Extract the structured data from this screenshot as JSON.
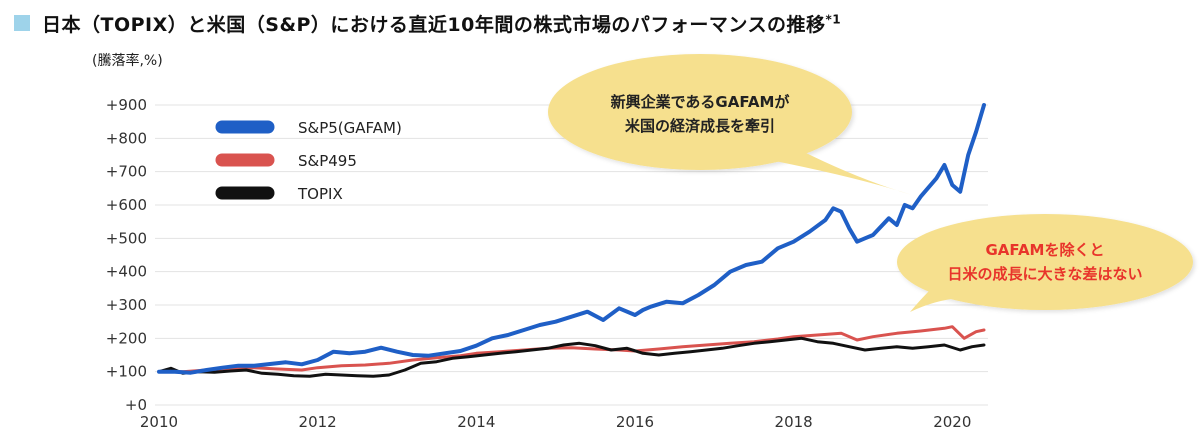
{
  "header": {
    "title": "日本（TOPIX）と米国（S&P）における直近10年間の株式市場のパフォーマンスの推移",
    "title_note": "*1",
    "accent_color": "#9ed3ea"
  },
  "chart_data": {
    "type": "line",
    "title": "日本（TOPIX）と米国（S&P）における直近10年間の株式市場のパフォーマンスの推移*1",
    "ylabel": "(騰落率,%)",
    "xlabel": "",
    "xlim": [
      2009.95,
      2020.45
    ],
    "ylim": [
      0,
      900
    ],
    "x_ticks": [
      2010,
      2012,
      2014,
      2016,
      2018,
      2020
    ],
    "x_tick_labels": [
      "2010",
      "2012",
      "2014",
      "2016",
      "2018",
      "2020"
    ],
    "y_ticks": [
      0,
      100,
      200,
      300,
      400,
      500,
      600,
      700,
      800,
      900
    ],
    "y_tick_labels": [
      "+0",
      "+100",
      "+200",
      "+300",
      "+400",
      "+500",
      "+600",
      "+700",
      "+800",
      "+900"
    ],
    "grid": "horizontal",
    "legend_position": "top-left",
    "series": [
      {
        "name": "S&P5(GAFAM)",
        "color": "#1f5fc6",
        "points": [
          [
            2010.0,
            100
          ],
          [
            2010.2,
            100
          ],
          [
            2010.4,
            97
          ],
          [
            2010.6,
            105
          ],
          [
            2010.8,
            112
          ],
          [
            2011.0,
            118
          ],
          [
            2011.2,
            118
          ],
          [
            2011.4,
            123
          ],
          [
            2011.6,
            128
          ],
          [
            2011.8,
            122
          ],
          [
            2012.0,
            135
          ],
          [
            2012.2,
            160
          ],
          [
            2012.4,
            155
          ],
          [
            2012.6,
            160
          ],
          [
            2012.8,
            172
          ],
          [
            2013.0,
            160
          ],
          [
            2013.2,
            150
          ],
          [
            2013.4,
            148
          ],
          [
            2013.6,
            155
          ],
          [
            2013.8,
            162
          ],
          [
            2014.0,
            178
          ],
          [
            2014.2,
            200
          ],
          [
            2014.4,
            210
          ],
          [
            2014.6,
            225
          ],
          [
            2014.8,
            240
          ],
          [
            2015.0,
            250
          ],
          [
            2015.2,
            265
          ],
          [
            2015.4,
            280
          ],
          [
            2015.6,
            255
          ],
          [
            2015.8,
            290
          ],
          [
            2016.0,
            270
          ],
          [
            2016.1,
            285
          ],
          [
            2016.2,
            295
          ],
          [
            2016.4,
            310
          ],
          [
            2016.6,
            305
          ],
          [
            2016.8,
            330
          ],
          [
            2017.0,
            360
          ],
          [
            2017.2,
            400
          ],
          [
            2017.4,
            420
          ],
          [
            2017.6,
            430
          ],
          [
            2017.8,
            470
          ],
          [
            2018.0,
            490
          ],
          [
            2018.2,
            520
          ],
          [
            2018.4,
            555
          ],
          [
            2018.5,
            590
          ],
          [
            2018.6,
            580
          ],
          [
            2018.7,
            530
          ],
          [
            2018.8,
            490
          ],
          [
            2018.9,
            500
          ],
          [
            2019.0,
            510
          ],
          [
            2019.2,
            560
          ],
          [
            2019.3,
            540
          ],
          [
            2019.4,
            600
          ],
          [
            2019.5,
            590
          ],
          [
            2019.6,
            625
          ],
          [
            2019.8,
            680
          ],
          [
            2019.9,
            720
          ],
          [
            2020.0,
            660
          ],
          [
            2020.1,
            640
          ],
          [
            2020.2,
            750
          ],
          [
            2020.3,
            820
          ],
          [
            2020.4,
            900
          ]
        ],
        "data_labels": []
      },
      {
        "name": "S&P495",
        "color": "#d9534f",
        "points": [
          [
            2010.0,
            100
          ],
          [
            2010.3,
            100
          ],
          [
            2010.6,
            105
          ],
          [
            2010.9,
            110
          ],
          [
            2011.2,
            112
          ],
          [
            2011.5,
            108
          ],
          [
            2011.8,
            105
          ],
          [
            2012.0,
            112
          ],
          [
            2012.3,
            118
          ],
          [
            2012.6,
            120
          ],
          [
            2012.9,
            125
          ],
          [
            2013.2,
            135
          ],
          [
            2013.5,
            142
          ],
          [
            2013.8,
            148
          ],
          [
            2014.0,
            155
          ],
          [
            2014.3,
            160
          ],
          [
            2014.6,
            165
          ],
          [
            2014.9,
            170
          ],
          [
            2015.2,
            172
          ],
          [
            2015.5,
            168
          ],
          [
            2015.8,
            165
          ],
          [
            2016.0,
            162
          ],
          [
            2016.3,
            168
          ],
          [
            2016.6,
            175
          ],
          [
            2016.9,
            180
          ],
          [
            2017.2,
            185
          ],
          [
            2017.5,
            190
          ],
          [
            2017.8,
            198
          ],
          [
            2018.0,
            205
          ],
          [
            2018.3,
            210
          ],
          [
            2018.6,
            215
          ],
          [
            2018.8,
            195
          ],
          [
            2019.0,
            205
          ],
          [
            2019.3,
            215
          ],
          [
            2019.6,
            222
          ],
          [
            2019.9,
            230
          ],
          [
            2020.0,
            235
          ],
          [
            2020.15,
            200
          ],
          [
            2020.3,
            220
          ],
          [
            2020.4,
            225
          ]
        ],
        "data_labels": []
      },
      {
        "name": "TOPIX",
        "color": "#111111",
        "points": [
          [
            2010.0,
            100
          ],
          [
            2010.15,
            110
          ],
          [
            2010.3,
            95
          ],
          [
            2010.5,
            100
          ],
          [
            2010.7,
            98
          ],
          [
            2010.9,
            102
          ],
          [
            2011.1,
            105
          ],
          [
            2011.3,
            95
          ],
          [
            2011.5,
            92
          ],
          [
            2011.7,
            88
          ],
          [
            2011.9,
            86
          ],
          [
            2012.1,
            92
          ],
          [
            2012.3,
            90
          ],
          [
            2012.5,
            88
          ],
          [
            2012.7,
            86
          ],
          [
            2012.9,
            90
          ],
          [
            2013.1,
            105
          ],
          [
            2013.3,
            125
          ],
          [
            2013.5,
            130
          ],
          [
            2013.7,
            140
          ],
          [
            2013.9,
            145
          ],
          [
            2014.1,
            150
          ],
          [
            2014.3,
            155
          ],
          [
            2014.5,
            160
          ],
          [
            2014.7,
            165
          ],
          [
            2014.9,
            170
          ],
          [
            2015.1,
            180
          ],
          [
            2015.3,
            185
          ],
          [
            2015.5,
            178
          ],
          [
            2015.7,
            165
          ],
          [
            2015.9,
            170
          ],
          [
            2016.1,
            155
          ],
          [
            2016.3,
            150
          ],
          [
            2016.5,
            155
          ],
          [
            2016.7,
            160
          ],
          [
            2016.9,
            165
          ],
          [
            2017.1,
            170
          ],
          [
            2017.3,
            178
          ],
          [
            2017.5,
            185
          ],
          [
            2017.7,
            190
          ],
          [
            2017.9,
            195
          ],
          [
            2018.1,
            200
          ],
          [
            2018.3,
            190
          ],
          [
            2018.5,
            185
          ],
          [
            2018.7,
            175
          ],
          [
            2018.9,
            165
          ],
          [
            2019.1,
            170
          ],
          [
            2019.3,
            175
          ],
          [
            2019.5,
            170
          ],
          [
            2019.7,
            175
          ],
          [
            2019.9,
            180
          ],
          [
            2020.1,
            165
          ],
          [
            2020.25,
            175
          ],
          [
            2020.4,
            180
          ]
        ],
        "data_labels": []
      }
    ]
  },
  "annotations": [
    {
      "text_line1": "新興企業であるGAFAMが",
      "text_line2": "米国の経済成長を牽引",
      "color": "#222222",
      "fill": "#f6e08e"
    },
    {
      "text_line1": "GAFAMを除くと",
      "text_line2": "日米の成長に大きな差はない",
      "color": "#e8342b",
      "fill": "#f6e08e"
    }
  ],
  "colors": {
    "grid": "#e3e3e3",
    "bubble_fill": "#f6e08e"
  }
}
